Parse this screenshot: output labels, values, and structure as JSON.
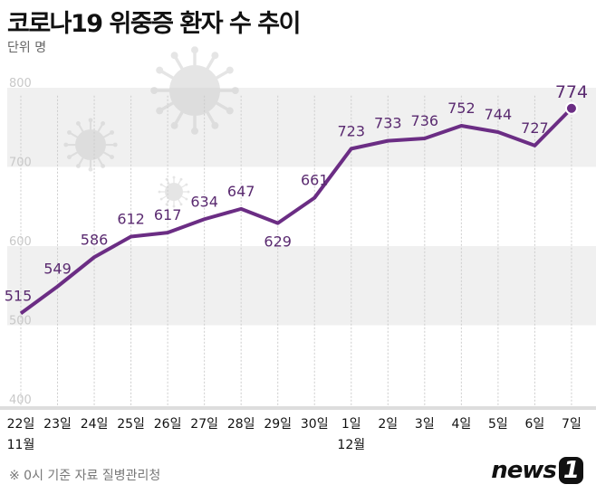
{
  "title": "코로나19 위중증 환자 수 추이",
  "unit_label": "단위 명",
  "source": "※ 0시 기준  자료  질병관리청",
  "logo": "news1",
  "colors": {
    "line": "#6b2d84",
    "band": "#f0f0f0",
    "grid": "#cccccc",
    "label": "#5a2a70"
  },
  "chart_data": {
    "type": "line",
    "categories": [
      "22일",
      "23일",
      "24일",
      "25일",
      "26일",
      "27일",
      "28일",
      "29일",
      "30일",
      "1일",
      "2일",
      "3일",
      "4일",
      "5일",
      "6일",
      "7일"
    ],
    "month_labels": [
      {
        "index": 0,
        "label": "11월"
      },
      {
        "index": 9,
        "label": "12월"
      }
    ],
    "values": [
      515,
      549,
      586,
      612,
      617,
      634,
      647,
      629,
      661,
      723,
      733,
      736,
      752,
      744,
      727,
      774
    ],
    "ylim": [
      400,
      800
    ],
    "yticks": [
      400,
      500,
      600,
      700,
      800
    ],
    "grid": "vertical dashed",
    "last_point_marker": true
  }
}
